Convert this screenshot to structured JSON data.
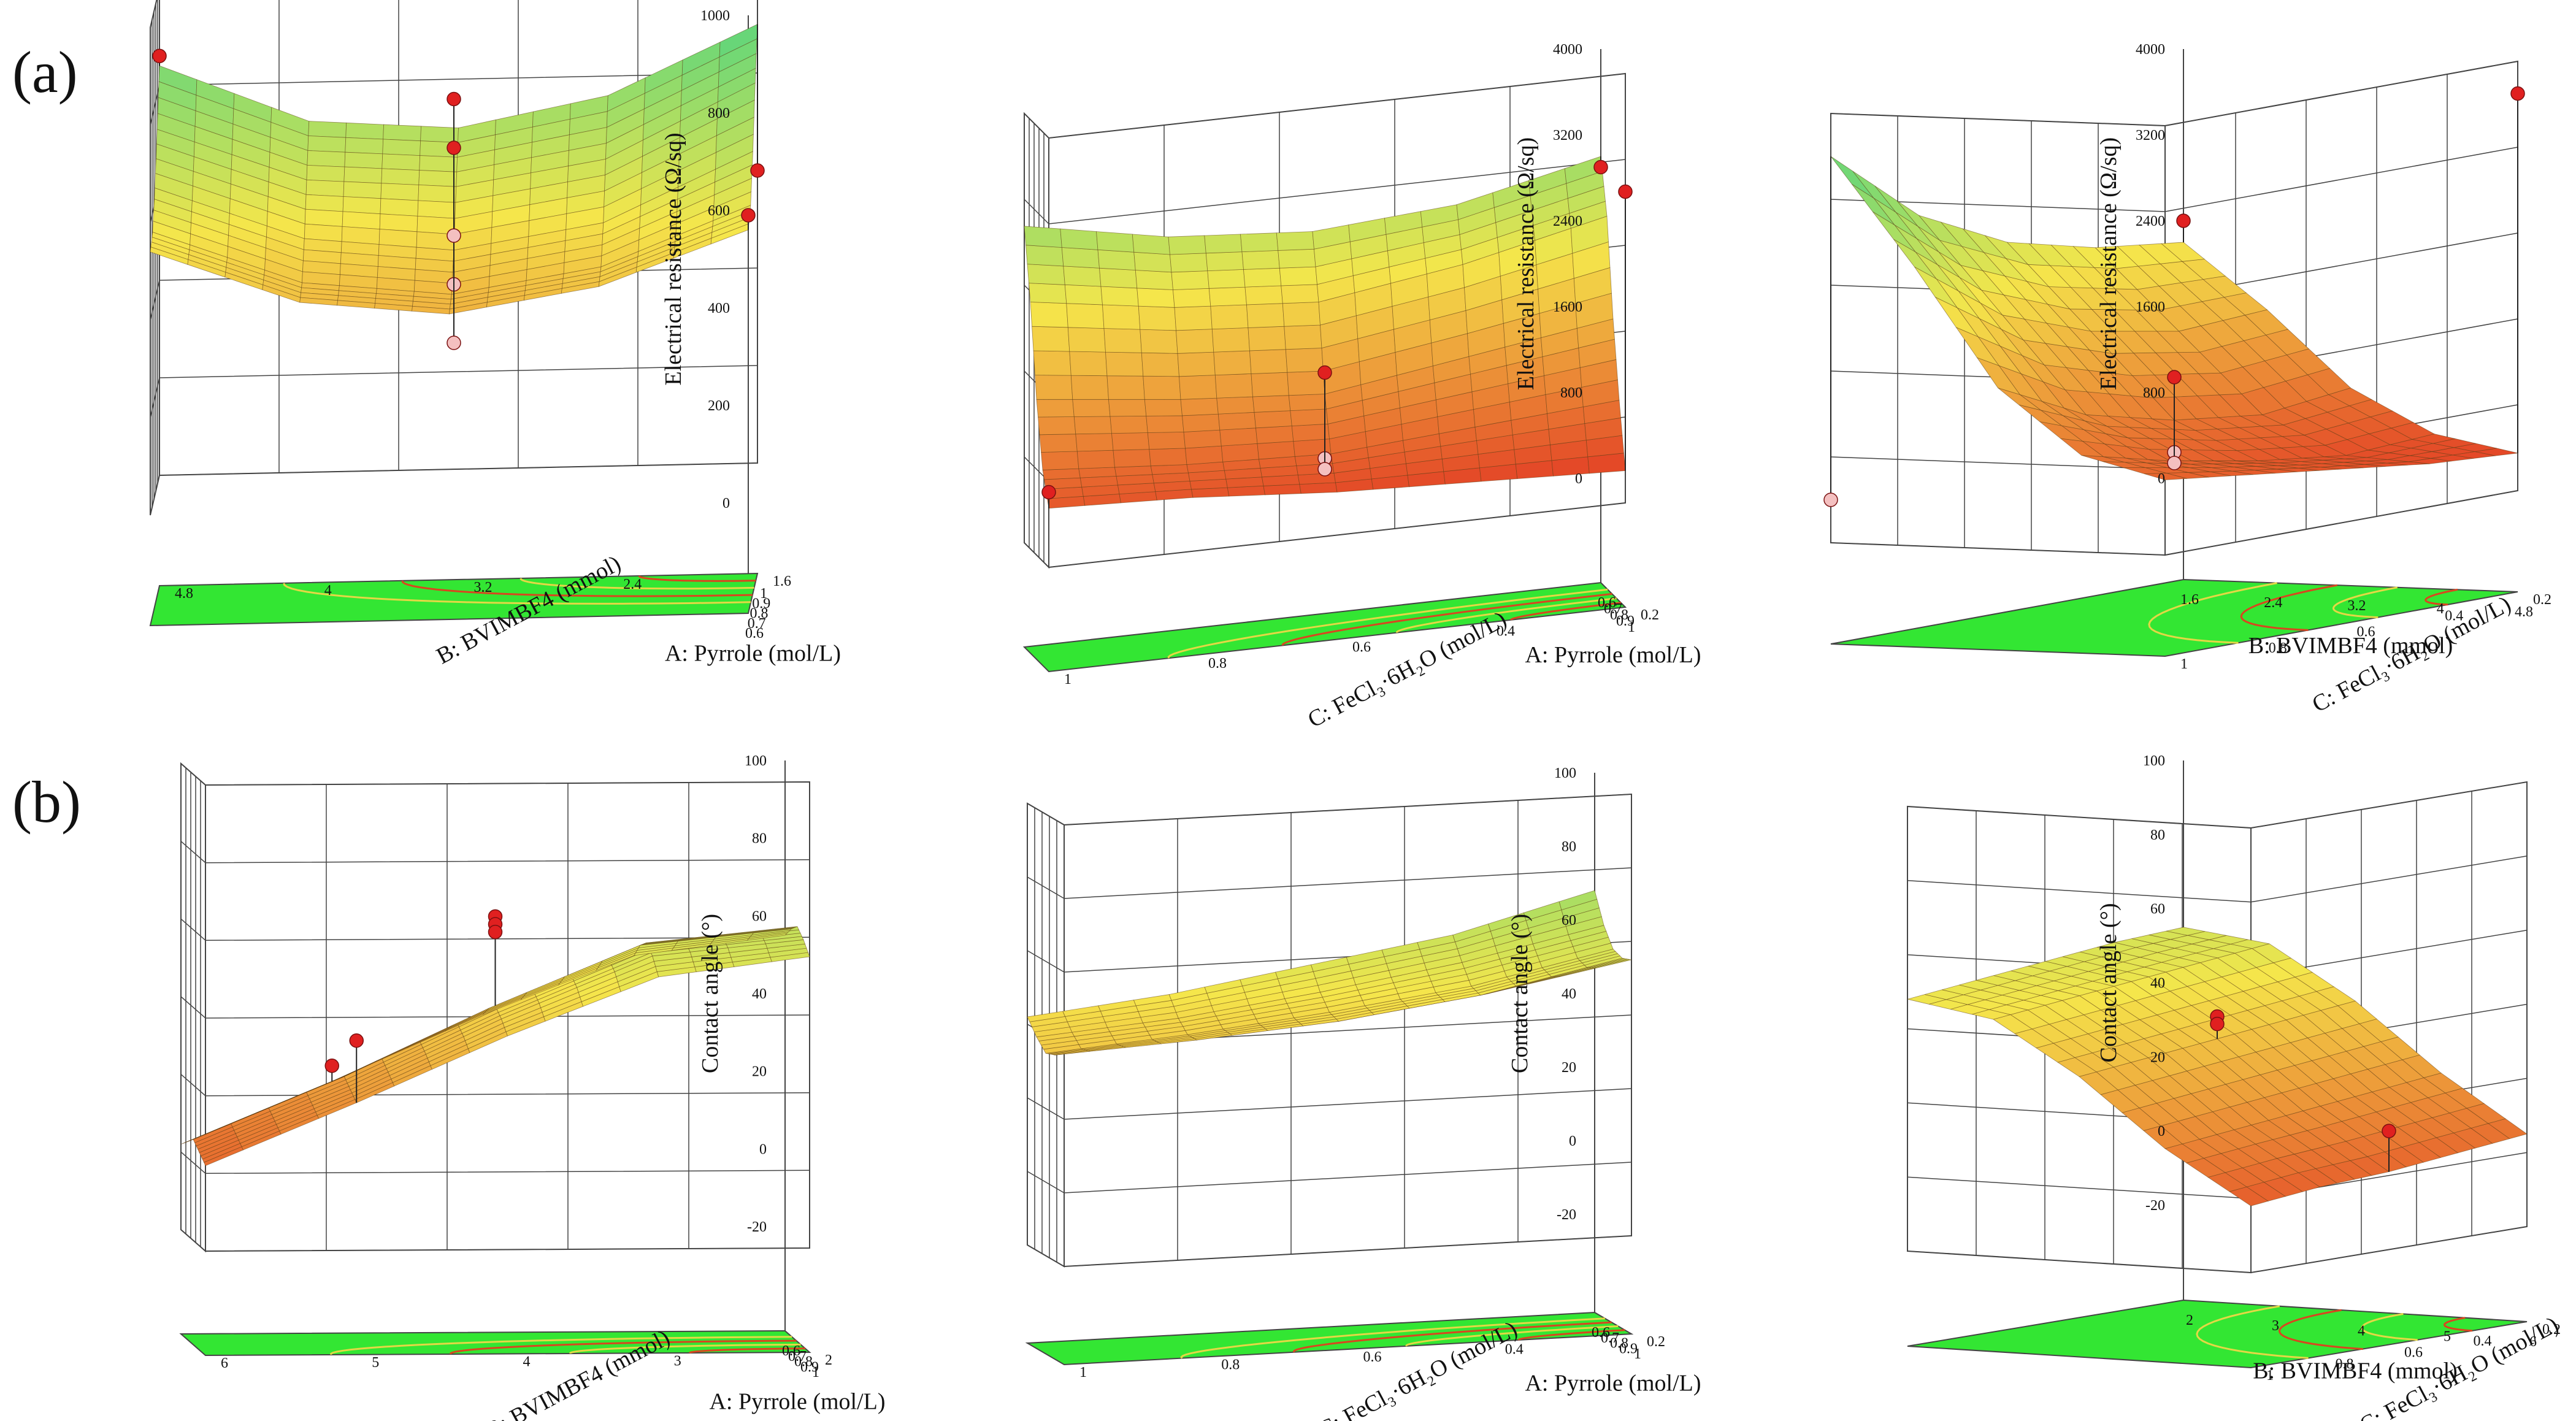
{
  "figure": {
    "row_labels": [
      "(a)",
      "(b)"
    ],
    "colors": {
      "background": "#ffffff",
      "floor": "#33e633",
      "floor_contour_strong": "#d9461f",
      "floor_contour_weak": "#e3d845",
      "grid": "#444444",
      "surface_low": "#e02820",
      "surface_mid": "#f5e64b",
      "surface_high": "#2fd08a",
      "design_point": "#e02020",
      "design_point_below": "#f4c0c0"
    }
  },
  "chart_data": [
    {
      "panel": "a1",
      "type": "surface3d",
      "title": "",
      "zlabel": "Electrical resistance (Ω/sq)",
      "zlim": [
        0,
        1000
      ],
      "zticks": [
        "0",
        "200",
        "400",
        "600",
        "800",
        "1000"
      ],
      "x_axis": {
        "label": "A: Pyrrole (mol/L)",
        "range": [
          0.6,
          1.0
        ],
        "ticks": [
          "0.6",
          "0.7",
          "0.8",
          "0.9",
          "1"
        ]
      },
      "y_axis": {
        "label": "B: BVIMBF4 (mmol)",
        "range": [
          1.6,
          4.8
        ],
        "ticks": [
          "1.6",
          "2.4",
          "3.2",
          "4",
          "4.8"
        ]
      },
      "surface": {
        "x": [
          0.6,
          0.7,
          0.8,
          0.9,
          1.0
        ],
        "y": [
          1.6,
          2.4,
          3.2,
          4.0,
          4.8
        ],
        "z": [
          [
            560,
            590,
            680,
            800,
            900
          ],
          [
            450,
            470,
            540,
            650,
            760
          ],
          [
            400,
            420,
            490,
            600,
            700
          ],
          [
            430,
            450,
            520,
            620,
            720
          ],
          [
            540,
            560,
            630,
            730,
            840
          ]
        ]
      },
      "points": [
        {
          "x": 1.0,
          "y": 4.8,
          "z": 860,
          "position": "above"
        },
        {
          "x": 0.6,
          "y": 1.6,
          "z": 590,
          "position": "above"
        },
        {
          "x": 0.8,
          "y": 3.2,
          "z": 800,
          "position": "above"
        },
        {
          "x": 0.8,
          "y": 3.2,
          "z": 700,
          "position": "above"
        },
        {
          "x": 0.8,
          "y": 3.2,
          "z": 520,
          "position": "below"
        },
        {
          "x": 0.8,
          "y": 3.2,
          "z": 420,
          "position": "below"
        },
        {
          "x": 0.8,
          "y": 3.2,
          "z": 300,
          "position": "below"
        },
        {
          "x": 1.0,
          "y": 1.6,
          "z": 600,
          "position": "above"
        }
      ]
    },
    {
      "panel": "a2",
      "type": "surface3d",
      "title": "",
      "zlabel": "Electrical resistance (Ω/sq)",
      "zlim": [
        0,
        4000
      ],
      "zticks": [
        "0",
        "800",
        "1600",
        "2400",
        "3200",
        "4000"
      ],
      "x_axis": {
        "label": "A: Pyrrole (mol/L)",
        "range": [
          0.6,
          1.0
        ],
        "ticks": [
          "0.6",
          "0.7",
          "0.8",
          "0.9",
          "1"
        ]
      },
      "y_axis": {
        "label": "C: FeCl₃·6H₂O (mol/L)",
        "range": [
          0.2,
          1.0
        ],
        "ticks": [
          "0.2",
          "0.4",
          "0.6",
          "0.8",
          "1"
        ]
      },
      "surface": {
        "x": [
          0.6,
          0.7,
          0.8,
          0.9,
          1.0
        ],
        "y": [
          0.2,
          0.4,
          0.6,
          0.8,
          1.0
        ],
        "z": [
          [
            3000,
            2500,
            1600,
            900,
            300
          ],
          [
            2700,
            2200,
            1400,
            800,
            350
          ],
          [
            2600,
            2000,
            1200,
            700,
            400
          ],
          [
            2700,
            2100,
            1300,
            750,
            500
          ],
          [
            2950,
            2300,
            1450,
            850,
            550
          ]
        ]
      },
      "points": [
        {
          "x": 1.0,
          "y": 1.0,
          "z": 700,
          "position": "above"
        },
        {
          "x": 1.0,
          "y": 0.2,
          "z": 2900,
          "position": "above"
        },
        {
          "x": 0.8,
          "y": 0.6,
          "z": 1400,
          "position": "above"
        },
        {
          "x": 0.8,
          "y": 0.6,
          "z": 600,
          "position": "below"
        },
        {
          "x": 0.8,
          "y": 0.6,
          "z": 500,
          "position": "below"
        },
        {
          "x": 0.6,
          "y": 0.2,
          "z": 2900,
          "position": "above"
        }
      ]
    },
    {
      "panel": "a3",
      "type": "surface3d",
      "title": "",
      "zlabel": "Electrical resistance (Ω/sq)",
      "zlim": [
        0,
        4000
      ],
      "zticks": [
        "0",
        "800",
        "1600",
        "2400",
        "3200",
        "4000"
      ],
      "x_axis": {
        "label": "B: BVIMBF4 (mmol)",
        "range": [
          1.6,
          4.8
        ],
        "ticks": [
          "1.6",
          "2.4",
          "3.2",
          "4",
          "4.8"
        ]
      },
      "y_axis": {
        "label": "C: FeCl₃·6H₂O (mol/L)",
        "range": [
          0.2,
          1.0
        ],
        "ticks": [
          "0.2",
          "0.4",
          "0.6",
          "0.8",
          "1"
        ]
      },
      "surface": {
        "x": [
          1.6,
          2.4,
          3.2,
          4.0,
          4.8
        ],
        "y": [
          0.2,
          0.4,
          0.6,
          0.8,
          1.0
        ],
        "z": [
          [
            2200,
            1600,
            900,
            500,
            350
          ],
          [
            2300,
            1550,
            800,
            450,
            400
          ],
          [
            2500,
            1700,
            900,
            550,
            500
          ],
          [
            2900,
            2000,
            1100,
            700,
            600
          ],
          [
            3600,
            2600,
            1500,
            900,
            700
          ]
        ]
      },
      "points": [
        {
          "x": 4.8,
          "y": 0.2,
          "z": 3700,
          "position": "above"
        },
        {
          "x": 1.6,
          "y": 0.2,
          "z": 2400,
          "position": "above"
        },
        {
          "x": 3.2,
          "y": 0.6,
          "z": 1300,
          "position": "above"
        },
        {
          "x": 3.2,
          "y": 0.6,
          "z": 600,
          "position": "below"
        },
        {
          "x": 3.2,
          "y": 0.6,
          "z": 500,
          "position": "below"
        },
        {
          "x": 1.6,
          "y": 1.0,
          "z": 400,
          "position": "below"
        }
      ]
    },
    {
      "panel": "b1",
      "type": "surface3d",
      "title": "",
      "zlabel": "Contact angle (°)",
      "zlim": [
        -20,
        100
      ],
      "zticks": [
        "-20",
        "0",
        "20",
        "40",
        "60",
        "80",
        "100"
      ],
      "x_axis": {
        "label": "A: Pyrrole (mol/L)",
        "range": [
          0.6,
          1.0
        ],
        "ticks": [
          "0.6",
          "0.7",
          "0.8",
          "0.9",
          "1"
        ]
      },
      "y_axis": {
        "label": "B: BVIMBF4 (mmol)",
        "range": [
          2,
          6
        ],
        "ticks": [
          "2",
          "3",
          "4",
          "5",
          "6"
        ]
      },
      "surface": {
        "x": [
          0.6,
          0.7,
          0.8,
          0.9,
          1.0
        ],
        "y": [
          2,
          3,
          4,
          5,
          6
        ],
        "z": [
          [
            55,
            58,
            60,
            58,
            55
          ],
          [
            50,
            54,
            56,
            54,
            50
          ],
          [
            35,
            38,
            40,
            38,
            35
          ],
          [
            18,
            20,
            22,
            20,
            18
          ],
          [
            2,
            4,
            6,
            4,
            2
          ]
        ]
      },
      "points": [
        {
          "x": 0.8,
          "y": 4,
          "z": 63,
          "position": "above"
        },
        {
          "x": 0.8,
          "y": 4,
          "z": 61,
          "position": "above"
        },
        {
          "x": 0.8,
          "y": 4,
          "z": 59,
          "position": "above"
        },
        {
          "x": 1.0,
          "y": 5,
          "z": 34,
          "position": "above"
        },
        {
          "x": 0.6,
          "y": 5,
          "z": 22,
          "position": "above"
        }
      ]
    },
    {
      "panel": "b2",
      "type": "surface3d",
      "title": "",
      "zlabel": "Contact angle (°)",
      "zlim": [
        -20,
        100
      ],
      "zticks": [
        "-20",
        "0",
        "20",
        "40",
        "60",
        "80",
        "100"
      ],
      "x_axis": {
        "label": "A: Pyrrole (mol/L)",
        "range": [
          0.6,
          1.0
        ],
        "ticks": [
          "0.6",
          "0.7",
          "0.8",
          "0.9",
          "1"
        ]
      },
      "y_axis": {
        "label": "C: FeCl₃·6H₂O (mol/L)",
        "range": [
          0.2,
          1.0
        ],
        "ticks": [
          "0.2",
          "0.4",
          "0.6",
          "0.8",
          "1"
        ]
      },
      "surface": {
        "x": [
          0.6,
          0.7,
          0.8,
          0.9,
          1.0
        ],
        "y": [
          0.2,
          0.4,
          0.6,
          0.8,
          1.0
        ],
        "z": [
          [
            68,
            60,
            55,
            54,
            55
          ],
          [
            58,
            52,
            47,
            46,
            48
          ],
          [
            52,
            46,
            42,
            41,
            43
          ],
          [
            46,
            41,
            38,
            38,
            40
          ],
          [
            42,
            38,
            35,
            36,
            40
          ]
        ]
      },
      "points": []
    },
    {
      "panel": "b3",
      "type": "surface3d",
      "title": "",
      "zlabel": "Contact angle (°)",
      "zlim": [
        -20,
        100
      ],
      "zticks": [
        "-20",
        "0",
        "20",
        "40",
        "60",
        "80",
        "100"
      ],
      "x_axis": {
        "label": "B: BVIMBF4 (mmol)",
        "range": [
          2,
          6
        ],
        "ticks": [
          "2",
          "3",
          "4",
          "5",
          "6"
        ]
      },
      "y_axis": {
        "label": "C: FeCl₃·6H₂O (mol/L)",
        "range": [
          0.2,
          1.0
        ],
        "ticks": [
          "0.2",
          "0.4",
          "0.6",
          "0.8",
          "1"
        ]
      },
      "surface": {
        "x": [
          2,
          3,
          4,
          5,
          6
        ],
        "y": [
          0.2,
          0.4,
          0.6,
          0.8,
          1.0
        ],
        "z": [
          [
            55,
            52,
            38,
            20,
            5
          ],
          [
            54,
            50,
            36,
            18,
            3
          ],
          [
            52,
            48,
            34,
            16,
            1
          ],
          [
            50,
            46,
            32,
            14,
            0
          ],
          [
            48,
            44,
            30,
            12,
            -2
          ]
        ]
      },
      "points": [
        {
          "x": 4,
          "y": 0.6,
          "z": 40,
          "position": "above"
        },
        {
          "x": 4,
          "y": 0.6,
          "z": 38,
          "position": "above"
        },
        {
          "x": 6,
          "y": 0.6,
          "z": 12,
          "position": "above"
        }
      ]
    }
  ]
}
